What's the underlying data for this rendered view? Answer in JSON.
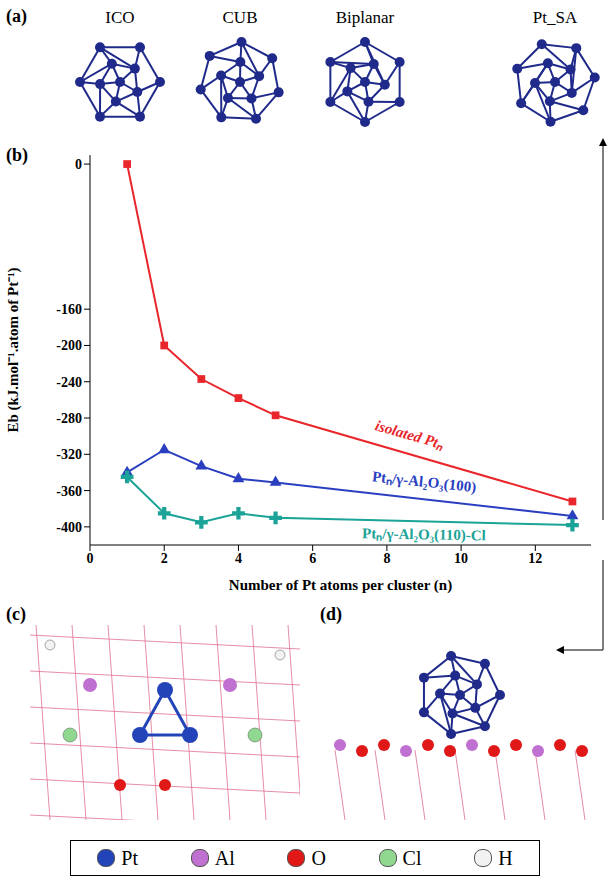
{
  "panels": {
    "a": {
      "letter": "(a)",
      "structures": [
        "ICO",
        "CUB",
        "Biplanar",
        "Pt_SA"
      ]
    },
    "b": {
      "letter": "(b)"
    },
    "c": {
      "letter": "(c)"
    },
    "d": {
      "letter": "(d)"
    }
  },
  "atom_legend": [
    {
      "label": "Pt",
      "color": "#2244b8"
    },
    {
      "label": "Al",
      "color": "#c070d0"
    },
    {
      "label": "O",
      "color": "#e01818"
    },
    {
      "label": "Cl",
      "color": "#90d890"
    },
    {
      "label": "H",
      "color": "#f2f2f2"
    }
  ],
  "chart_data": {
    "type": "line",
    "x_label": "Number of Pt atoms per cluster (n)",
    "y_label": "Eb (kJ.mol⁻¹.atom of Pt⁻¹)",
    "x": [
      1,
      2,
      3,
      4,
      5,
      13
    ],
    "xlim": [
      0,
      13.5
    ],
    "xticks": [
      0,
      2,
      4,
      6,
      8,
      10,
      12
    ],
    "ylim": [
      -420,
      10
    ],
    "yticks": [
      0,
      -160,
      -200,
      -240,
      -280,
      -320,
      -360,
      -400
    ],
    "grid": false,
    "series": [
      {
        "name": "isolated Ptₙ",
        "color": "#e8262b",
        "marker": "square",
        "values": [
          0,
          -200,
          -237,
          -258,
          -277,
          -372
        ]
      },
      {
        "name": "Ptₙ/γ-Al₂O₃(100)",
        "color": "#2a3fc0",
        "marker": "triangle",
        "values": [
          -340,
          -315,
          -333,
          -347,
          -351,
          -388
        ]
      },
      {
        "name": "Ptₙ/γ-Al₂O₃(110)-Cl",
        "color": "#1aa396",
        "marker": "cross",
        "values": [
          -345,
          -385,
          -395,
          -385,
          -390,
          -398
        ]
      }
    ]
  }
}
